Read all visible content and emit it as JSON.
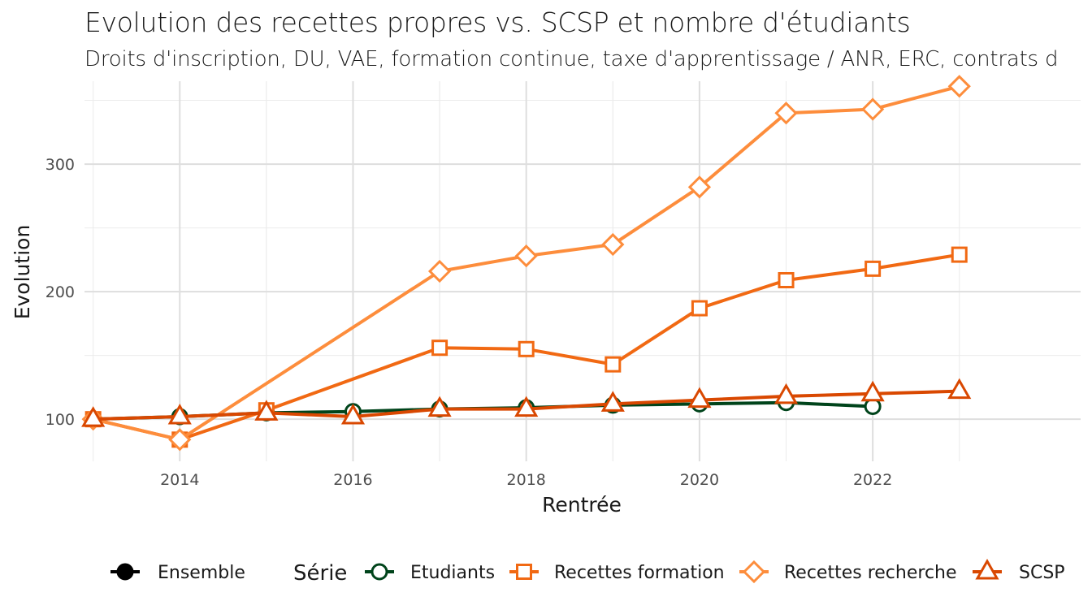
{
  "chart_data": {
    "type": "line",
    "title": "Evolution des recettes propres vs. SCSP et nombre d'étudiants",
    "subtitle": "Droits d'inscription, DU, VAE, formation continue, taxe d'apprentissage / ANR, ERC, contrats d",
    "xlabel": "Rentrée",
    "ylabel": "Evolution",
    "xlim": [
      2012.9,
      2024.4
    ],
    "ylim": [
      67,
      365
    ],
    "x_ticks": [
      2014,
      2016,
      2018,
      2020,
      2022
    ],
    "y_ticks": [
      100,
      200,
      300
    ],
    "grid": true,
    "legend_position": "bottom",
    "legend_title": "Série",
    "series": [
      {
        "name": "Etudiants",
        "marker": "circle",
        "color": "#00441b",
        "x": [
          2013,
          2014,
          2015,
          2016,
          2017,
          2018,
          2019,
          2020,
          2021,
          2022
        ],
        "values": [
          100,
          102,
          105,
          106,
          108,
          109,
          111,
          112,
          113,
          110
        ]
      },
      {
        "name": "Recettes formation",
        "marker": "square",
        "color": "#f16913",
        "x": [
          2013,
          2014,
          2015,
          2017,
          2018,
          2019,
          2020,
          2021,
          2022,
          2023
        ],
        "values": [
          100,
          84,
          107,
          156,
          155,
          143,
          187,
          209,
          218,
          229
        ]
      },
      {
        "name": "Recettes recherche",
        "marker": "diamond",
        "color": "#fd8d3c",
        "x": [
          2013,
          2014,
          2017,
          2018,
          2019,
          2020,
          2021,
          2022,
          2023
        ],
        "values": [
          100,
          84,
          216,
          228,
          237,
          282,
          340,
          343,
          361
        ]
      },
      {
        "name": "SCSP",
        "marker": "triangle",
        "color": "#d94801",
        "x": [
          2013,
          2014,
          2015,
          2016,
          2017,
          2018,
          2019,
          2020,
          2021,
          2022,
          2023
        ],
        "values": [
          100,
          102,
          105,
          102,
          108,
          108,
          112,
          115,
          118,
          120,
          122
        ]
      }
    ],
    "legend_items": [
      {
        "label": "Ensemble",
        "marker": "dot",
        "color": "#000000"
      },
      {
        "label": "Etudiants",
        "marker": "circle",
        "color": "#00441b"
      },
      {
        "label": "Recettes formation",
        "marker": "square",
        "color": "#f16913"
      },
      {
        "label": "Recettes recherche",
        "marker": "diamond",
        "color": "#fd8d3c"
      },
      {
        "label": "SCSP",
        "marker": "triangle",
        "color": "#d94801"
      }
    ]
  }
}
